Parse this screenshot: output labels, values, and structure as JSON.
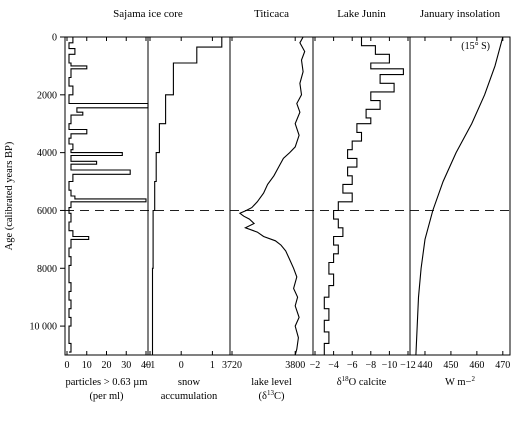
{
  "chart_data": {
    "type": "line",
    "y_axis": {
      "label": "Age (calibrated years BP)",
      "range": [
        0,
        11000
      ],
      "ticks": [
        0,
        2000,
        4000,
        6000,
        8000,
        10000
      ],
      "tick_labels": [
        "0",
        "2000",
        "4000",
        "6000",
        "8000",
        "10 000"
      ],
      "inverted": true
    },
    "reference_line": {
      "age": 6000,
      "style": "dashed"
    },
    "panels": [
      {
        "id": "sajama-particles",
        "title": "Sajama ice core",
        "xlabel_lines": [
          "particles > 0.63 µm",
          "(per ml)"
        ],
        "xrange": [
          0,
          40
        ],
        "xticks": [
          0,
          10,
          20,
          30,
          40
        ],
        "xtick_labels": [
          "0",
          "10",
          "20",
          "30",
          "40"
        ],
        "style": "step",
        "points": [
          [
            0,
            3
          ],
          [
            200,
            1
          ],
          [
            400,
            4
          ],
          [
            600,
            1
          ],
          [
            900,
            2
          ],
          [
            1000,
            10
          ],
          [
            1100,
            2
          ],
          [
            1400,
            1
          ],
          [
            1700,
            3
          ],
          [
            2000,
            1
          ],
          [
            2300,
            3
          ],
          [
            2300,
            41
          ],
          [
            2450,
            41
          ],
          [
            2450,
            5
          ],
          [
            2600,
            8
          ],
          [
            2700,
            2
          ],
          [
            3000,
            1
          ],
          [
            3200,
            10
          ],
          [
            3350,
            10
          ],
          [
            3350,
            2
          ],
          [
            3500,
            1
          ],
          [
            3700,
            3
          ],
          [
            3900,
            2
          ],
          [
            4000,
            28
          ],
          [
            4100,
            28
          ],
          [
            4100,
            2
          ],
          [
            4300,
            15
          ],
          [
            4400,
            15
          ],
          [
            4400,
            2
          ],
          [
            4600,
            32
          ],
          [
            4750,
            32
          ],
          [
            4750,
            3
          ],
          [
            5000,
            1
          ],
          [
            5300,
            2
          ],
          [
            5500,
            4
          ],
          [
            5600,
            40
          ],
          [
            5700,
            40
          ],
          [
            5700,
            2
          ],
          [
            5900,
            1
          ],
          [
            6100,
            2
          ],
          [
            6400,
            1
          ],
          [
            6700,
            3
          ],
          [
            6900,
            11
          ],
          [
            7000,
            11
          ],
          [
            7000,
            2
          ],
          [
            7300,
            1
          ],
          [
            7600,
            2
          ],
          [
            7900,
            1
          ],
          [
            8200,
            1
          ],
          [
            8500,
            2
          ],
          [
            8800,
            1
          ],
          [
            9100,
            2
          ],
          [
            9400,
            1
          ],
          [
            9700,
            2
          ],
          [
            10000,
            1
          ],
          [
            10300,
            1
          ],
          [
            10600,
            2
          ],
          [
            10900,
            1
          ]
        ]
      },
      {
        "id": "sajama-snow",
        "title": "",
        "xlabel_lines": [
          "snow",
          "accumulation"
        ],
        "xrange": [
          -1,
          1.5
        ],
        "xticks": [
          -1,
          0,
          1
        ],
        "xtick_labels": [
          "−1",
          "0",
          "1"
        ],
        "style": "step",
        "points": [
          [
            0,
            1.3
          ],
          [
            350,
            1.3
          ],
          [
            350,
            0.5
          ],
          [
            900,
            0.5
          ],
          [
            900,
            -0.25
          ],
          [
            2000,
            -0.25
          ],
          [
            2000,
            -0.5
          ],
          [
            3000,
            -0.5
          ],
          [
            3000,
            -0.7
          ],
          [
            4000,
            -0.7
          ],
          [
            4000,
            -0.8
          ],
          [
            5000,
            -0.8
          ],
          [
            5000,
            -0.85
          ],
          [
            6000,
            -0.85
          ],
          [
            6000,
            -0.9
          ],
          [
            8000,
            -0.9
          ],
          [
            8000,
            -0.92
          ],
          [
            11000,
            -0.92
          ]
        ]
      },
      {
        "id": "titicaca",
        "title": "Titicaca",
        "xlabel_lines": [
          "lake level",
          "(δ13C)"
        ],
        "xrange": [
          3720,
          3820
        ],
        "xticks": [
          3720,
          3800
        ],
        "xtick_labels": [
          "3720",
          "3800"
        ],
        "style": "line",
        "points": [
          [
            0,
            3810
          ],
          [
            200,
            3806
          ],
          [
            500,
            3812
          ],
          [
            800,
            3808
          ],
          [
            1200,
            3810
          ],
          [
            1600,
            3806
          ],
          [
            2000,
            3808
          ],
          [
            2300,
            3802
          ],
          [
            2600,
            3806
          ],
          [
            3000,
            3800
          ],
          [
            3400,
            3805
          ],
          [
            3800,
            3800
          ],
          [
            4000,
            3793
          ],
          [
            4200,
            3785
          ],
          [
            4500,
            3779
          ],
          [
            4800,
            3773
          ],
          [
            5100,
            3765
          ],
          [
            5400,
            3760
          ],
          [
            5700,
            3752
          ],
          [
            5900,
            3745
          ],
          [
            6000,
            3738
          ],
          [
            6100,
            3730
          ],
          [
            6200,
            3735
          ],
          [
            6300,
            3742
          ],
          [
            6450,
            3748
          ],
          [
            6600,
            3737
          ],
          [
            6750,
            3752
          ],
          [
            6900,
            3760
          ],
          [
            7050,
            3775
          ],
          [
            7200,
            3782
          ],
          [
            7400,
            3788
          ],
          [
            7700,
            3793
          ],
          [
            8000,
            3798
          ],
          [
            8300,
            3802
          ],
          [
            8700,
            3798
          ],
          [
            9000,
            3803
          ],
          [
            9300,
            3800
          ],
          [
            9700,
            3805
          ],
          [
            10000,
            3800
          ],
          [
            10400,
            3804
          ],
          [
            10800,
            3802
          ],
          [
            11000,
            3800
          ]
        ]
      },
      {
        "id": "lake-junin",
        "title": "Lake Junin",
        "xlabel_lines": [
          "δ18O calcite"
        ],
        "xrange": [
          -2,
          -12
        ],
        "xticks": [
          -2,
          -4,
          -6,
          -8,
          -10,
          -12
        ],
        "xtick_labels": [
          "−2",
          "−4",
          "−6",
          "−8",
          "−10",
          "−12"
        ],
        "style": "step",
        "points": [
          [
            0,
            -7
          ],
          [
            300,
            -8.5
          ],
          [
            600,
            -10
          ],
          [
            900,
            -8
          ],
          [
            1100,
            -11.5
          ],
          [
            1300,
            -9
          ],
          [
            1600,
            -10.5
          ],
          [
            1900,
            -8
          ],
          [
            2200,
            -9
          ],
          [
            2500,
            -7.5
          ],
          [
            2800,
            -8
          ],
          [
            3000,
            -6.5
          ],
          [
            3300,
            -7
          ],
          [
            3600,
            -6
          ],
          [
            3900,
            -5.5
          ],
          [
            4200,
            -6.5
          ],
          [
            4500,
            -5.5
          ],
          [
            4800,
            -6
          ],
          [
            5100,
            -5
          ],
          [
            5400,
            -6
          ],
          [
            5700,
            -4.5
          ],
          [
            6000,
            -4
          ],
          [
            6300,
            -4.5
          ],
          [
            6600,
            -5
          ],
          [
            6900,
            -4
          ],
          [
            7200,
            -4.5
          ],
          [
            7500,
            -4
          ],
          [
            7800,
            -3.5
          ],
          [
            8200,
            -4
          ],
          [
            8600,
            -3.5
          ],
          [
            9000,
            -3
          ],
          [
            9400,
            -3.5
          ],
          [
            9800,
            -3
          ],
          [
            10200,
            -3.5
          ],
          [
            10600,
            -3
          ],
          [
            11000,
            -3.5
          ]
        ]
      },
      {
        "id": "insolation",
        "title": "January insolation",
        "annotation": "(15° S)",
        "xlabel_lines": [
          "W m−2"
        ],
        "xrange": [
          435,
          472
        ],
        "xticks": [
          440,
          450,
          460,
          470
        ],
        "xtick_labels": [
          "440",
          "450",
          "460",
          "470"
        ],
        "style": "line",
        "points": [
          [
            0,
            470
          ],
          [
            1000,
            467
          ],
          [
            2000,
            463
          ],
          [
            3000,
            458
          ],
          [
            4000,
            452
          ],
          [
            5000,
            447
          ],
          [
            6000,
            443
          ],
          [
            7000,
            440
          ],
          [
            8000,
            438.5
          ],
          [
            9000,
            437.5
          ],
          [
            10000,
            437
          ],
          [
            11000,
            436.5
          ]
        ]
      }
    ]
  }
}
